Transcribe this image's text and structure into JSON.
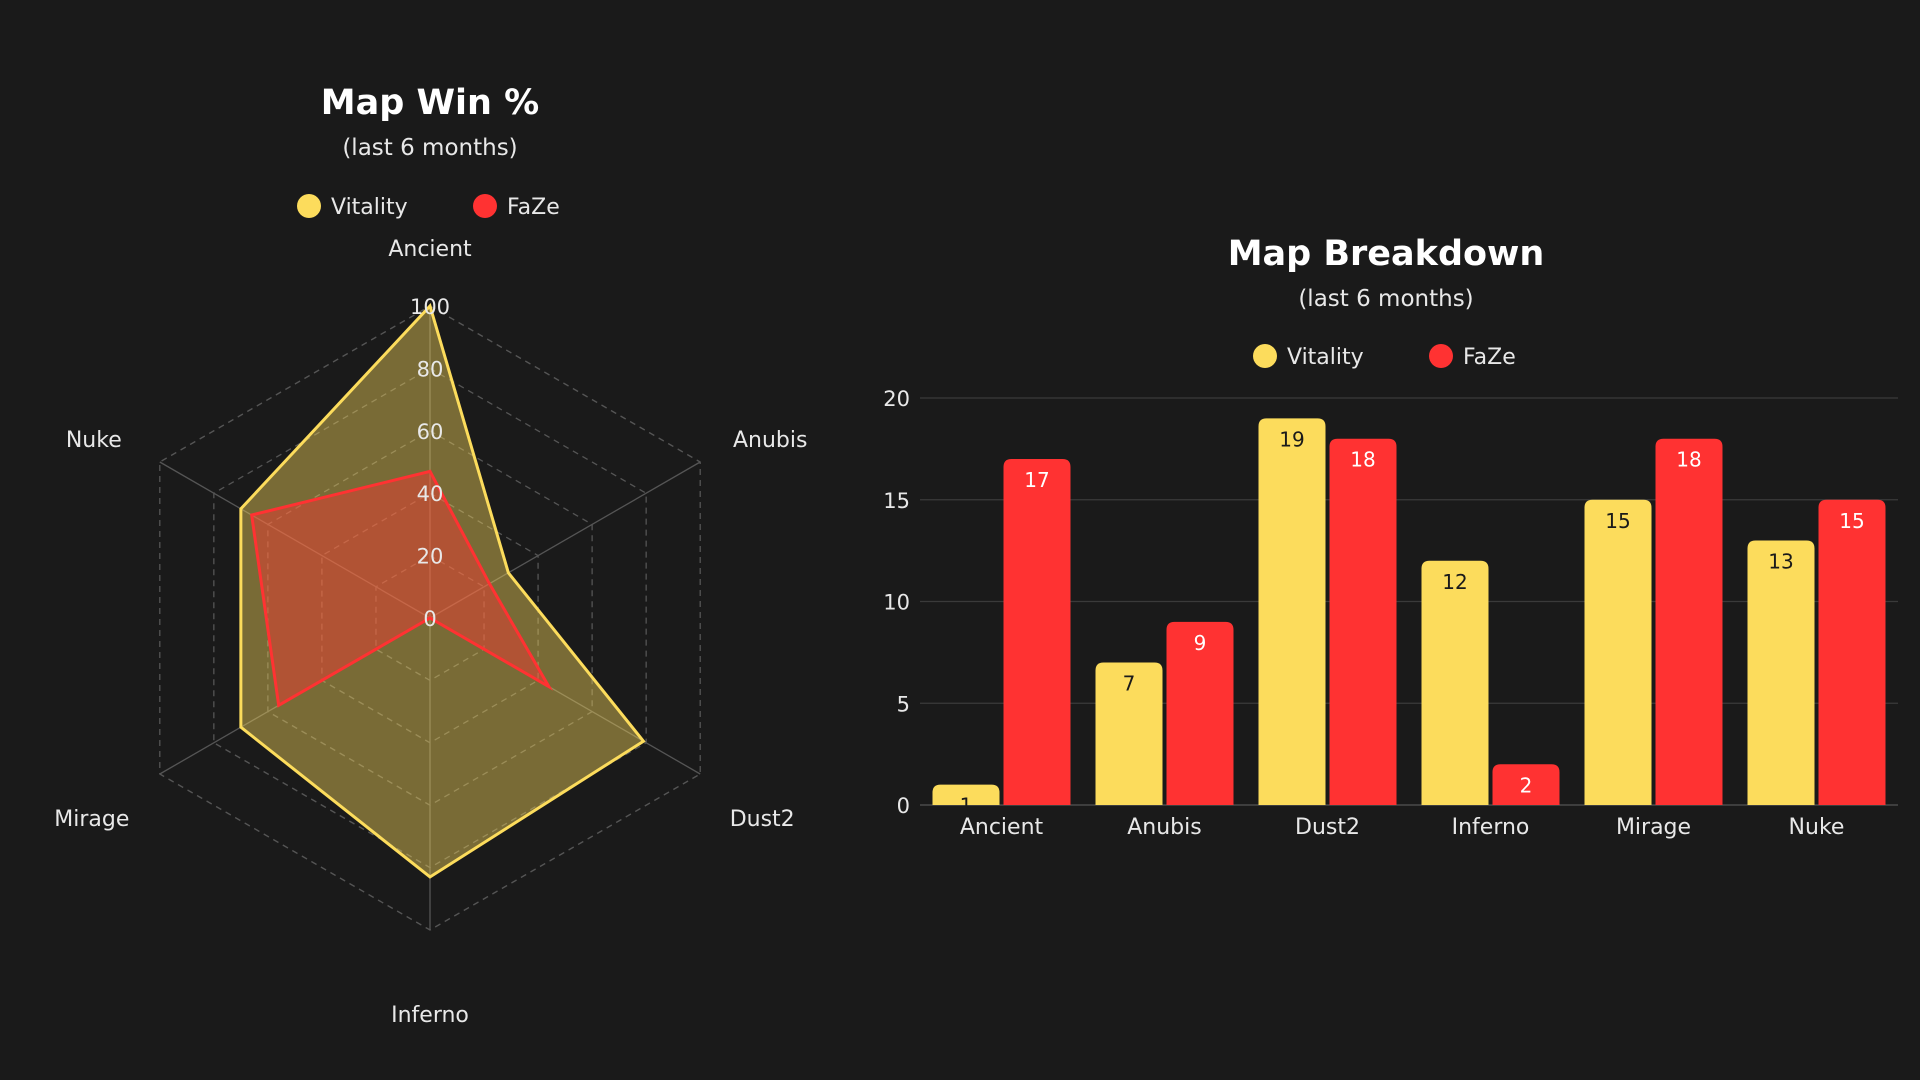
{
  "colors": {
    "background": "#1a1a1a",
    "vitality": "#fcdc5c",
    "faze": "#ff3232",
    "grid": "#555555",
    "text": "#e8e8e8"
  },
  "chart_data": [
    {
      "type": "radar",
      "title": "Map Win %",
      "subtitle": "(last 6 months)",
      "axes": [
        "Ancient",
        "Anubis",
        "Dust2",
        "Inferno",
        "Mirage",
        "Nuke"
      ],
      "rlim": [
        0,
        100
      ],
      "ticks": [
        0,
        20,
        40,
        60,
        80,
        100
      ],
      "legend_position": "top",
      "series": [
        {
          "name": "Vitality",
          "color": "#fcdc5c",
          "values": [
            100,
            29,
            79,
            83,
            70,
            70
          ]
        },
        {
          "name": "FaZe",
          "color": "#ff3232",
          "values": [
            47,
            22,
            44,
            0,
            56,
            66
          ]
        }
      ]
    },
    {
      "type": "bar",
      "title": "Map Breakdown",
      "subtitle": "(last 6 months)",
      "categories": [
        "Ancient",
        "Anubis",
        "Dust2",
        "Inferno",
        "Mirage",
        "Nuke"
      ],
      "ylim": [
        0,
        20
      ],
      "yticks": [
        0,
        5,
        10,
        15,
        20
      ],
      "grid": true,
      "legend_position": "top",
      "xlabel": "",
      "ylabel": "",
      "series": [
        {
          "name": "Vitality",
          "color": "#fcdc5c",
          "values": [
            1,
            7,
            19,
            12,
            15,
            13
          ]
        },
        {
          "name": "FaZe",
          "color": "#ff3232",
          "values": [
            17,
            9,
            18,
            2,
            18,
            15
          ]
        }
      ]
    }
  ]
}
